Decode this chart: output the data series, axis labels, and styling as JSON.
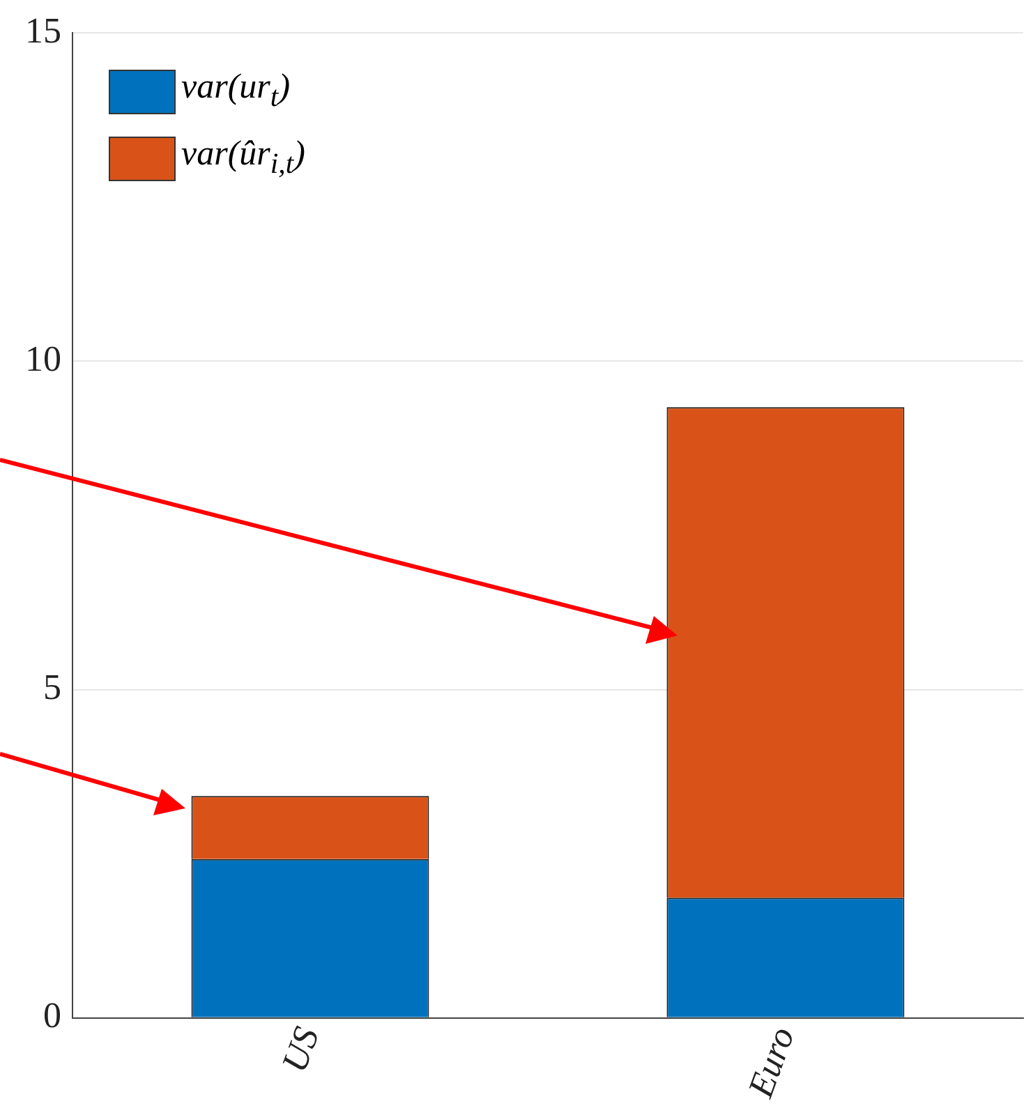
{
  "chart_data": {
    "type": "bar",
    "stacked": true,
    "categories": [
      "US",
      "Euro"
    ],
    "series": [
      {
        "name": "var(ur$_{t}$)",
        "color": "#0072bd",
        "values": [
          2.42,
          1.83
        ]
      },
      {
        "name": "var(ûr$_{i,t}$)",
        "color": "#d95319",
        "values": [
          0.96,
          7.47
        ]
      }
    ],
    "ylim": [
      0,
      15
    ],
    "yticks": [
      0,
      5,
      10,
      15
    ],
    "grid": "y",
    "legend": "top left"
  }
}
